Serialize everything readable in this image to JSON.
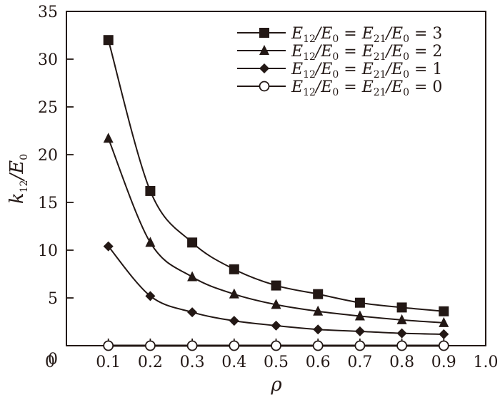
{
  "chart_data": {
    "type": "line",
    "title": "",
    "xlabel": "ρ",
    "ylabel": "k12/E0",
    "ylabel_parts": {
      "main": "k",
      "sub": "12",
      "slash": "/E",
      "sub2": "0"
    },
    "xlim": [
      0,
      1.0
    ],
    "ylim": [
      0,
      35
    ],
    "grid": false,
    "legend_position": "upper right",
    "x_ticks": [
      "0",
      "0.1",
      "0.2",
      "0.3",
      "0.4",
      "0.5",
      "0.6",
      "0.7",
      "0.8",
      "0.9",
      "1.0"
    ],
    "y_ticks": [
      "0",
      "5",
      "10",
      "15",
      "20",
      "25",
      "30",
      "35"
    ],
    "x": [
      0.1,
      0.2,
      0.3,
      0.4,
      0.5,
      0.6,
      0.7,
      0.8,
      0.9
    ],
    "series": [
      {
        "name": "E12/E0 = E21/E0 = 3",
        "value_label": "3",
        "marker": "square",
        "values": [
          32.0,
          16.2,
          10.8,
          8.0,
          6.3,
          5.4,
          4.5,
          4.0,
          3.6
        ]
      },
      {
        "name": "E12/E0 = E21/E0 = 2",
        "value_label": "2",
        "marker": "triangle",
        "values": [
          21.7,
          10.8,
          7.2,
          5.4,
          4.3,
          3.6,
          3.1,
          2.7,
          2.4
        ]
      },
      {
        "name": "E12/E0 = E21/E0 = 1",
        "value_label": "1",
        "marker": "diamond",
        "values": [
          10.4,
          5.2,
          3.5,
          2.6,
          2.1,
          1.7,
          1.5,
          1.3,
          1.2
        ]
      },
      {
        "name": "E12/E0 = E21/E0 = 0",
        "value_label": "0",
        "marker": "open-circle",
        "values": [
          0,
          0,
          0,
          0,
          0,
          0,
          0,
          0,
          0
        ]
      }
    ],
    "colors": {
      "ink": "#231815",
      "background": "#ffffff"
    }
  }
}
